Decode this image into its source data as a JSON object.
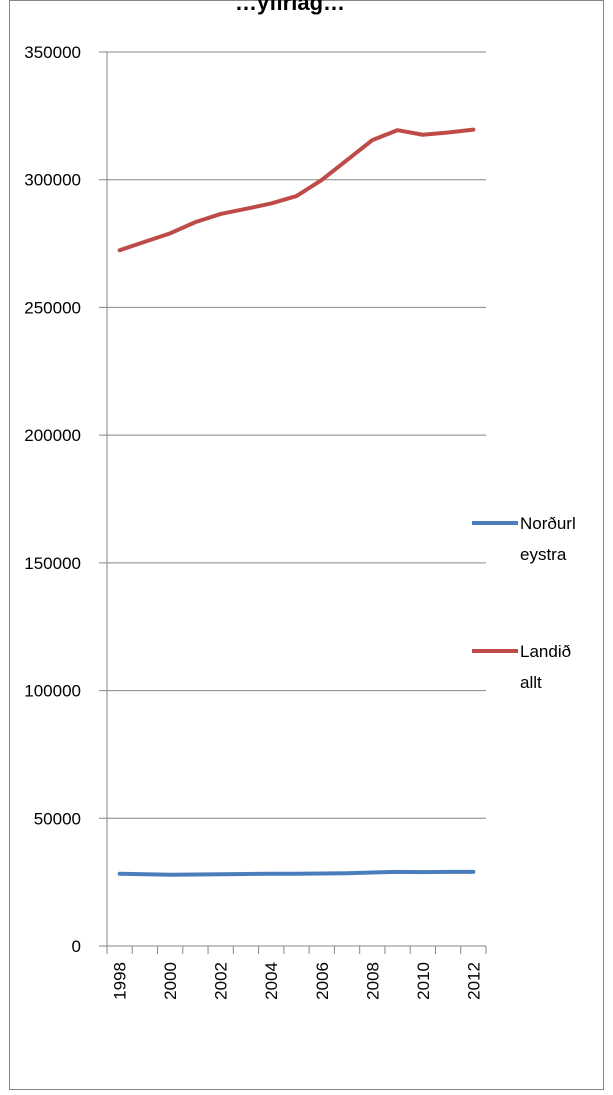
{
  "chart_data": {
    "type": "line",
    "title": "…yfirlag…",
    "xlabel": "",
    "ylabel": "",
    "x": [
      1998,
      1999,
      2000,
      2001,
      2002,
      2003,
      2004,
      2005,
      2006,
      2007,
      2008,
      2009,
      2010,
      2011,
      2012
    ],
    "x_tick_labels": [
      "1998",
      "2000",
      "2002",
      "2004",
      "2006",
      "2008",
      "2010",
      "2012"
    ],
    "y_tick_labels": [
      "0",
      "50000",
      "100000",
      "150000",
      "200000",
      "250000",
      "300000",
      "350000"
    ],
    "ylim": [
      0,
      350000
    ],
    "grid": true,
    "legend_position": "right",
    "series": [
      {
        "name": "Norðurl eystra",
        "legend_lines": [
          "Norðurl",
          "eystra"
        ],
        "color": "#4a7ebb",
        "values": [
          28300,
          28100,
          27900,
          28000,
          28100,
          28200,
          28300,
          28300,
          28400,
          28500,
          28800,
          29000,
          28900,
          29000,
          29000
        ]
      },
      {
        "name": "Landið allt",
        "legend_lines": [
          "Landið",
          "allt"
        ],
        "color": "#be4b48",
        "values": [
          272400,
          275700,
          279000,
          283400,
          286600,
          288600,
          290700,
          293600,
          299900,
          307700,
          315500,
          319400,
          317600,
          318500,
          319600
        ]
      }
    ]
  }
}
